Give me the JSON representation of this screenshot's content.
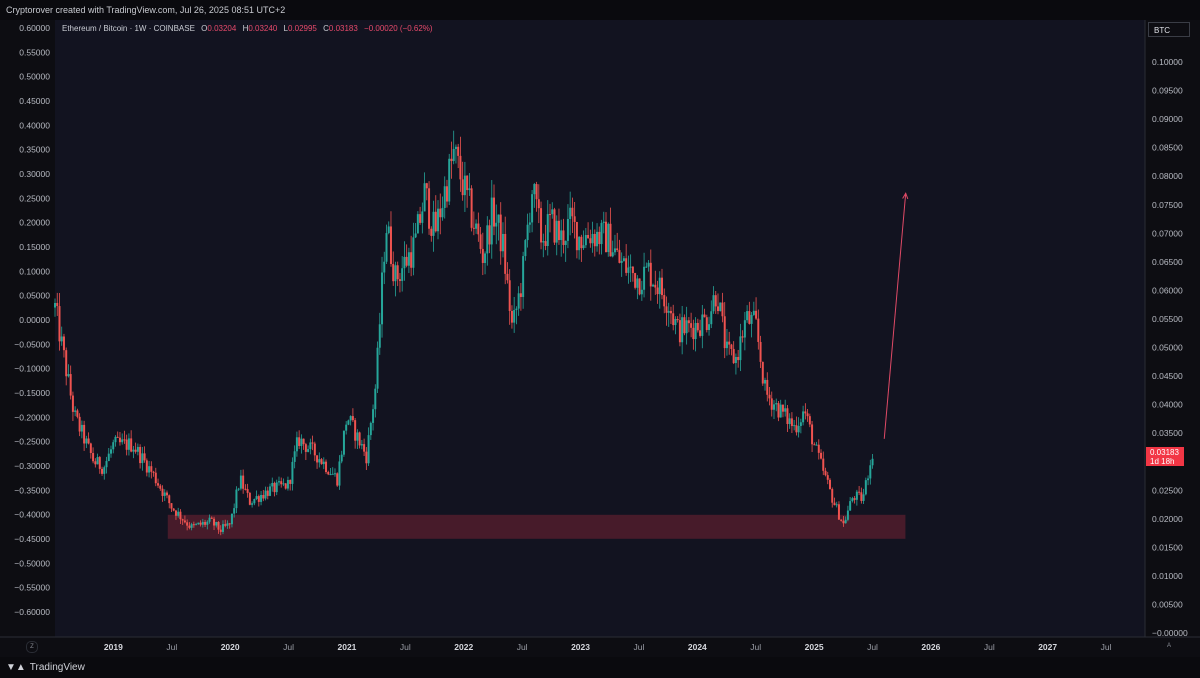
{
  "header": {
    "credit": "Cryptorover created with TradingView.com, Jul 26, 2025 08:51 UTC+2"
  },
  "legend": {
    "symbol": "Ethereum / Bitcoin · 1W · COINBASE",
    "o_label": "O",
    "o_value": "0.03204",
    "h_label": "H",
    "h_value": "0.03240",
    "l_label": "L",
    "l_value": "0.02995",
    "c_label": "C",
    "c_value": "0.03183",
    "change": "−0.00020 (−0.62%)"
  },
  "currency_label": "BTC",
  "price_tag": {
    "price": "0.03183",
    "countdown": "1d 18h"
  },
  "footer": {
    "brand": "TradingView"
  },
  "buttons": {
    "zoom": "Z",
    "auto": "A"
  },
  "colors": {
    "bull": "#26a69a",
    "bear": "#ef5350",
    "zone": "#5a1f2e",
    "arrow": "#e04a66",
    "background": "#121320"
  },
  "chart_data": {
    "type": "candlestick",
    "title": "Ethereum / Bitcoin · 1W · COINBASE",
    "left_axis": {
      "ticks": [
        "0.60000",
        "0.55000",
        "0.50000",
        "0.45000",
        "0.40000",
        "0.35000",
        "0.30000",
        "0.25000",
        "0.20000",
        "0.15000",
        "0.10000",
        "0.05000",
        "0.00000",
        "−0.05000",
        "−0.10000",
        "−0.15000",
        "−0.20000",
        "−0.25000",
        "−0.30000",
        "−0.35000",
        "−0.40000",
        "−0.45000",
        "−0.50000",
        "−0.55000",
        "−0.60000"
      ]
    },
    "right_axis": {
      "range": [
        0.0,
        0.1
      ],
      "ticks": [
        "0.10000",
        "0.09500",
        "0.09000",
        "0.08500",
        "0.08000",
        "0.07500",
        "0.07000",
        "0.06500",
        "0.06000",
        "0.05500",
        "0.05000",
        "0.04500",
        "0.04000",
        "0.03500",
        "0.03000",
        "0.02500",
        "0.02000",
        "0.01500",
        "0.01000",
        "0.00500",
        "−0.00000"
      ]
    },
    "x_axis": {
      "range": [
        "2018-07",
        "2027-11"
      ],
      "ticks": [
        {
          "label": "2019",
          "date": "2019-01",
          "bold": true
        },
        {
          "label": "Jul",
          "date": "2019-07",
          "bold": false
        },
        {
          "label": "2020",
          "date": "2020-01",
          "bold": true
        },
        {
          "label": "Jul",
          "date": "2020-07",
          "bold": false
        },
        {
          "label": "2021",
          "date": "2021-01",
          "bold": true
        },
        {
          "label": "Jul",
          "date": "2021-07",
          "bold": false
        },
        {
          "label": "2022",
          "date": "2022-01",
          "bold": true
        },
        {
          "label": "Jul",
          "date": "2022-07",
          "bold": false
        },
        {
          "label": "2023",
          "date": "2023-01",
          "bold": true
        },
        {
          "label": "Jul",
          "date": "2023-07",
          "bold": false
        },
        {
          "label": "2024",
          "date": "2024-01",
          "bold": true
        },
        {
          "label": "Jul",
          "date": "2024-07",
          "bold": false
        },
        {
          "label": "2025",
          "date": "2025-01",
          "bold": true
        },
        {
          "label": "Jul",
          "date": "2025-07",
          "bold": false
        },
        {
          "label": "2026",
          "date": "2026-01",
          "bold": true
        },
        {
          "label": "Jul",
          "date": "2026-07",
          "bold": false
        },
        {
          "label": "2027",
          "date": "2027-01",
          "bold": true
        },
        {
          "label": "Jul",
          "date": "2027-07",
          "bold": false
        }
      ]
    },
    "price_path": [
      [
        "2018-07",
        0.057
      ],
      [
        "2018-09",
        0.038
      ],
      [
        "2018-11",
        0.03
      ],
      [
        "2018-12",
        0.029
      ],
      [
        "2019-01",
        0.033
      ],
      [
        "2019-03",
        0.033
      ],
      [
        "2019-05",
        0.028
      ],
      [
        "2019-07",
        0.022
      ],
      [
        "2019-09",
        0.0185
      ],
      [
        "2019-11",
        0.0195
      ],
      [
        "2019-12",
        0.018
      ],
      [
        "2020-01",
        0.019
      ],
      [
        "2020-02",
        0.027
      ],
      [
        "2020-03",
        0.023
      ],
      [
        "2020-05",
        0.025
      ],
      [
        "2020-07",
        0.026
      ],
      [
        "2020-08",
        0.034
      ],
      [
        "2020-10",
        0.031
      ],
      [
        "2020-12",
        0.027
      ],
      [
        "2021-01",
        0.038
      ],
      [
        "2021-03",
        0.031
      ],
      [
        "2021-04",
        0.044
      ],
      [
        "2021-05",
        0.072
      ],
      [
        "2021-06",
        0.062
      ],
      [
        "2021-08",
        0.068
      ],
      [
        "2021-09",
        0.077
      ],
      [
        "2021-10",
        0.07
      ],
      [
        "2021-12",
        0.084
      ],
      [
        "2022-02",
        0.072
      ],
      [
        "2022-03",
        0.066
      ],
      [
        "2022-04",
        0.074
      ],
      [
        "2022-05",
        0.068
      ],
      [
        "2022-06",
        0.053
      ],
      [
        "2022-07",
        0.062
      ],
      [
        "2022-08",
        0.078
      ],
      [
        "2022-09",
        0.069
      ],
      [
        "2022-10",
        0.072
      ],
      [
        "2022-11",
        0.069
      ],
      [
        "2022-12",
        0.072
      ],
      [
        "2023-01",
        0.069
      ],
      [
        "2023-02",
        0.07
      ],
      [
        "2023-04",
        0.069
      ],
      [
        "2023-05",
        0.065
      ],
      [
        "2023-07",
        0.062
      ],
      [
        "2023-08",
        0.0635
      ],
      [
        "2023-10",
        0.058
      ],
      [
        "2023-11",
        0.053
      ],
      [
        "2024-01",
        0.054
      ],
      [
        "2024-02",
        0.055
      ],
      [
        "2024-03",
        0.06
      ],
      [
        "2024-04",
        0.049
      ],
      [
        "2024-05",
        0.048
      ],
      [
        "2024-06",
        0.055
      ],
      [
        "2024-07",
        0.054
      ],
      [
        "2024-08",
        0.042
      ],
      [
        "2024-09",
        0.04
      ],
      [
        "2024-11",
        0.036
      ],
      [
        "2024-12",
        0.039
      ],
      [
        "2025-01",
        0.033
      ],
      [
        "2025-03",
        0.023
      ],
      [
        "2025-04",
        0.019
      ],
      [
        "2025-05",
        0.024
      ],
      [
        "2025-06",
        0.0235
      ],
      [
        "2025-07",
        0.0318
      ]
    ],
    "annotations": [
      {
        "type": "zone",
        "x": [
          "2019-07",
          "2025-11"
        ],
        "y": [
          0.0165,
          0.0207
        ]
      },
      {
        "type": "arrow",
        "from": [
          "2025-08",
          0.034
        ],
        "to": [
          "2025-10",
          0.077
        ]
      }
    ]
  }
}
